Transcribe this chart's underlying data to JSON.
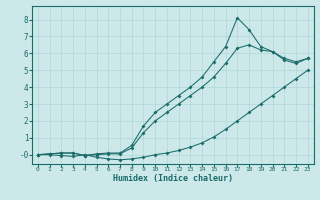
{
  "xlabel": "Humidex (Indice chaleur)",
  "bg_color": "#cce8e8",
  "grid_color": "#b0d8d8",
  "line_color": "#1a6b6b",
  "xlim": [
    -0.5,
    23.5
  ],
  "ylim": [
    -0.55,
    8.8
  ],
  "xticks": [
    0,
    1,
    2,
    3,
    4,
    5,
    6,
    7,
    8,
    9,
    10,
    11,
    12,
    13,
    14,
    15,
    16,
    17,
    18,
    19,
    20,
    21,
    22,
    23
  ],
  "yticks": [
    0,
    1,
    2,
    3,
    4,
    5,
    6,
    7,
    8
  ],
  "line1_x": [
    0,
    1,
    2,
    3,
    4,
    5,
    6,
    7,
    8,
    9,
    10,
    11,
    12,
    13,
    14,
    15,
    16,
    17,
    18,
    19,
    20,
    21,
    22,
    23
  ],
  "line1_y": [
    0.0,
    0.0,
    -0.05,
    -0.1,
    0.0,
    -0.15,
    -0.25,
    -0.3,
    -0.25,
    -0.15,
    0.0,
    0.1,
    0.25,
    0.45,
    0.7,
    1.05,
    1.5,
    2.0,
    2.5,
    3.0,
    3.5,
    4.0,
    4.5,
    5.0
  ],
  "line2_x": [
    0,
    1,
    2,
    3,
    4,
    5,
    6,
    7,
    8,
    9,
    10,
    11,
    12,
    13,
    14,
    15,
    16,
    17,
    18,
    19,
    20,
    21,
    22,
    23
  ],
  "line2_y": [
    0.0,
    0.05,
    0.1,
    0.1,
    -0.05,
    0.0,
    0.05,
    0.05,
    0.4,
    1.3,
    2.0,
    2.5,
    3.0,
    3.5,
    4.0,
    4.6,
    5.4,
    6.3,
    6.5,
    6.2,
    6.1,
    5.7,
    5.5,
    5.7
  ],
  "line3_x": [
    0,
    1,
    2,
    3,
    4,
    5,
    6,
    7,
    8,
    9,
    10,
    11,
    12,
    13,
    14,
    15,
    16,
    17,
    18,
    19,
    20,
    21,
    22,
    23
  ],
  "line3_y": [
    0.0,
    0.05,
    0.1,
    0.1,
    -0.05,
    0.05,
    0.1,
    0.1,
    0.55,
    1.7,
    2.5,
    3.0,
    3.5,
    4.0,
    4.6,
    5.5,
    6.4,
    8.1,
    7.4,
    6.4,
    6.1,
    5.6,
    5.4,
    5.7
  ],
  "xlabel_fontsize": 6.0,
  "xtick_fontsize": 4.5,
  "ytick_fontsize": 5.5,
  "linewidth": 0.75,
  "markersize": 2.0
}
